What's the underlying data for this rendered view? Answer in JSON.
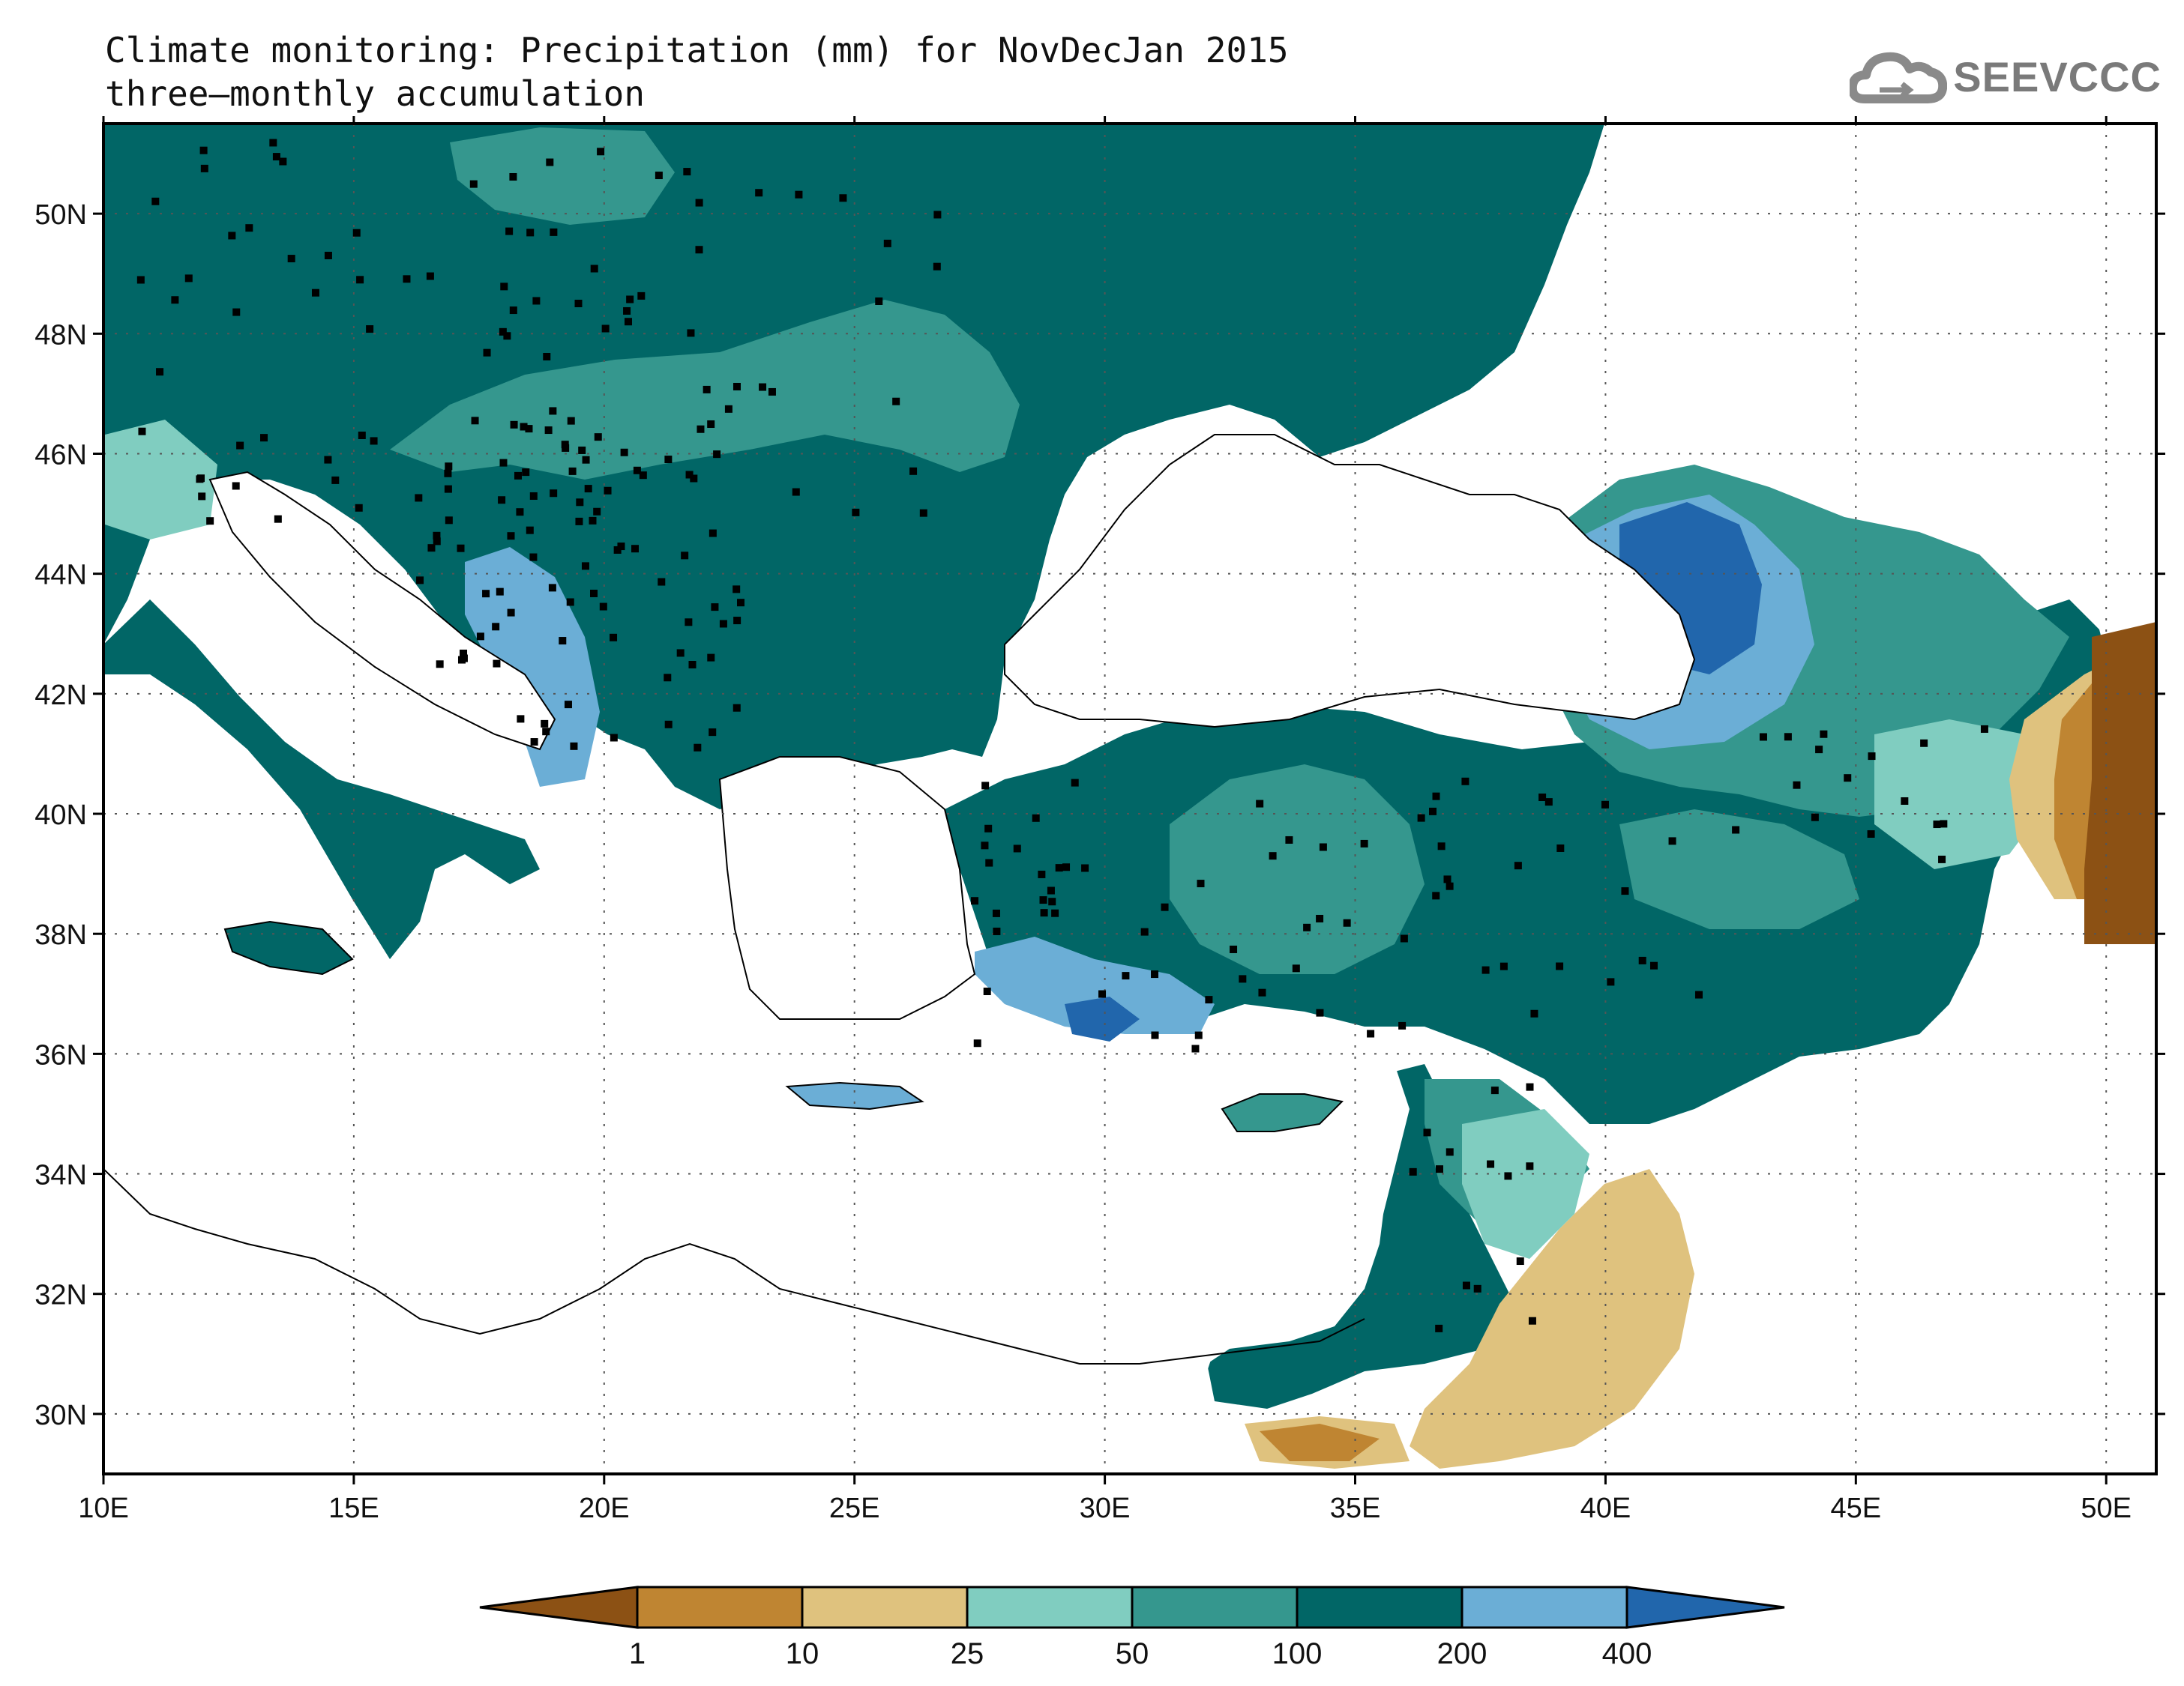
{
  "title_line1": "Climate monitoring: Precipitation (mm) for NovDecJan 2015",
  "title_line2": "three—monthly accumulation",
  "logo": {
    "text": "SEEVCCC",
    "icon": "cloud-icon"
  },
  "map": {
    "lon_ticks": [
      "10E",
      "15E",
      "20E",
      "25E",
      "30E",
      "35E",
      "40E",
      "45E",
      "50E"
    ],
    "lat_ticks": [
      "50N",
      "48N",
      "46N",
      "44N",
      "42N",
      "40N",
      "38N",
      "36N",
      "34N",
      "32N",
      "30N"
    ],
    "lon_range": [
      10,
      51
    ],
    "lat_range": [
      29,
      51.5
    ],
    "grid": "dotted"
  },
  "legend": {
    "thresholds": [
      "1",
      "10",
      "25",
      "50",
      "100",
      "200",
      "400"
    ],
    "colors": [
      "#8c5114",
      "#bf8532",
      "#dfc27e",
      "#80cdc0",
      "#35978e",
      "#016666",
      "#6baed6",
      "#2166ac"
    ]
  },
  "colors": {
    "sea": "#ffffff",
    "land_nodata": "#ffffff",
    "border": "#000000",
    "station": "#000000"
  }
}
